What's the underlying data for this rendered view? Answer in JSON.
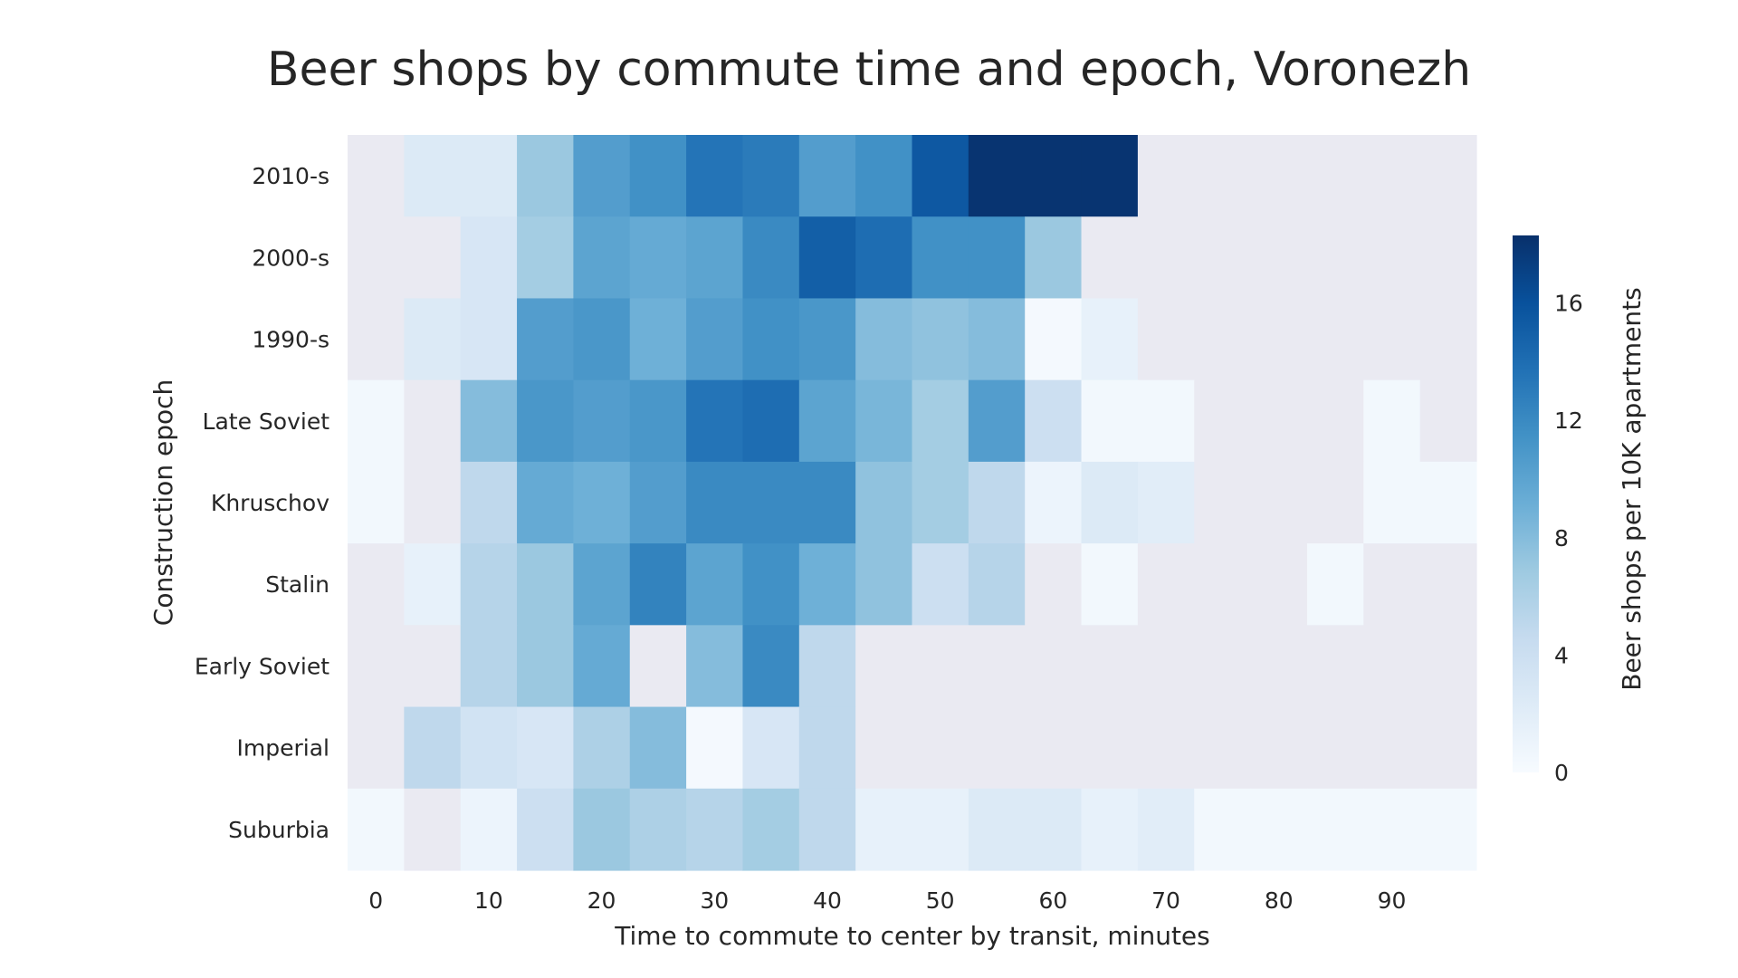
{
  "chart_data": {
    "type": "heatmap",
    "title": "Beer shops by commute time and epoch, Voronezh",
    "xlabel": "Time to commute to center by transit, minutes",
    "ylabel": "Construction epoch",
    "colorbar_label": "Beer shops per 10K apartments",
    "colormap": "Blues",
    "missing_color": "#eaeaf2",
    "vmin": 0,
    "vmax": 18.3,
    "colorbar_ticks": [
      0,
      4,
      8,
      12,
      16
    ],
    "x_bins": [
      0,
      5,
      10,
      15,
      20,
      25,
      30,
      35,
      40,
      45,
      50,
      55,
      60,
      65,
      70,
      75,
      80,
      85,
      90,
      95
    ],
    "x_tick_labels": [
      "0",
      "10",
      "20",
      "30",
      "40",
      "50",
      "60",
      "70",
      "80",
      "90"
    ],
    "x_tick_values": [
      0,
      10,
      20,
      30,
      40,
      50,
      60,
      70,
      80,
      90
    ],
    "rows": [
      "2010-s",
      "2000-s",
      "1990-s",
      "Late Soviet",
      "Khruschov",
      "Stalin",
      "Early Soviet",
      "Imperial",
      "Suburbia"
    ],
    "values": [
      [
        null,
        2.5,
        2.5,
        7,
        10.5,
        11.5,
        13.5,
        13,
        10.5,
        11.5,
        15.5,
        18,
        18,
        18,
        null,
        null,
        null,
        null,
        null,
        null
      ],
      [
        null,
        null,
        3,
        6.5,
        10,
        9.5,
        10,
        12,
        15,
        14,
        11.5,
        11.5,
        7,
        null,
        null,
        null,
        null,
        null,
        null,
        null
      ],
      [
        null,
        2.5,
        3,
        10.5,
        11,
        9,
        10.5,
        11.5,
        11,
        8,
        7.5,
        8,
        0.3,
        1.5,
        null,
        null,
        null,
        null,
        null,
        null
      ],
      [
        0.5,
        null,
        8,
        11,
        10.5,
        11,
        13.5,
        14,
        10,
        8.5,
        6.5,
        10.5,
        4,
        0.5,
        0.5,
        null,
        null,
        null,
        0.5,
        null
      ],
      [
        0.5,
        null,
        5,
        9.5,
        9,
        10.5,
        12,
        12,
        12,
        7.5,
        6.5,
        5,
        1,
        2.5,
        2,
        null,
        null,
        null,
        0.5,
        0.5
      ],
      [
        null,
        1.5,
        5.5,
        7,
        10,
        12.5,
        10,
        11.5,
        9,
        7.5,
        4,
        5.5,
        null,
        0.5,
        null,
        null,
        null,
        0.5,
        null,
        null
      ],
      [
        null,
        null,
        5.5,
        7,
        9.5,
        null,
        8,
        12,
        5,
        null,
        null,
        null,
        null,
        null,
        null,
        null,
        null,
        null,
        null,
        null
      ],
      [
        null,
        5,
        3.5,
        3,
        6,
        8,
        0.3,
        3,
        5,
        null,
        null,
        null,
        null,
        null,
        null,
        null,
        null,
        null,
        null,
        null
      ],
      [
        0.5,
        null,
        1,
        4,
        7,
        6,
        5.5,
        6.5,
        5,
        1.5,
        1.5,
        2.5,
        2.5,
        1.5,
        2,
        0.5,
        0.5,
        0.5,
        0.5,
        0.5
      ]
    ]
  }
}
